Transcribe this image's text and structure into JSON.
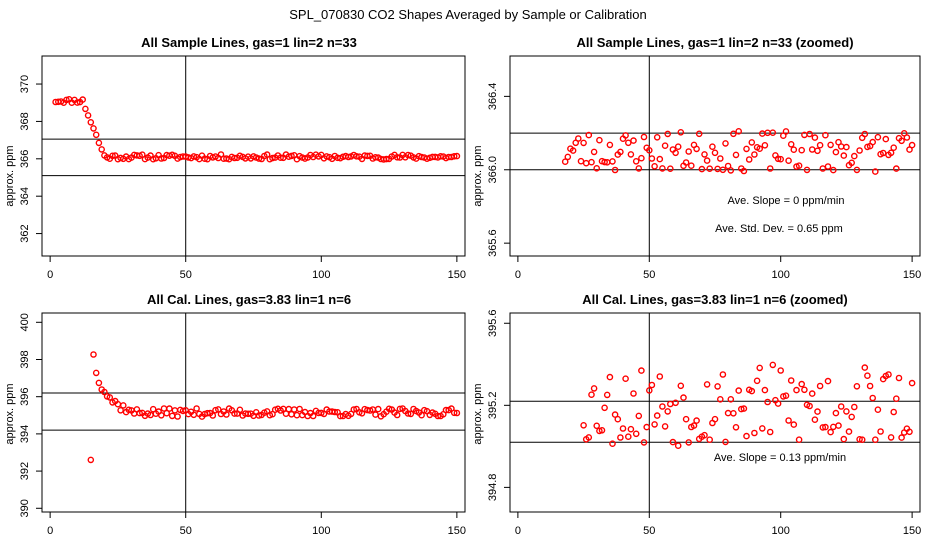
{
  "figure_title": "SPL_070830  CO2 Shapes Averaged by Sample or Calibration",
  "colors": {
    "points": "#ff0000",
    "axes": "#000000",
    "background": "#ffffff"
  },
  "chart_data": [
    {
      "type": "scatter",
      "title": "All Sample Lines, gas=1 lin=2 n=33",
      "ylabel": "approx. ppm",
      "xlim": [
        -3,
        153
      ],
      "ylim": [
        360.8,
        371.5
      ],
      "xticks": [
        "0",
        "50",
        "100",
        "150"
      ],
      "xtick_values": [
        0,
        50,
        100,
        150
      ],
      "yticks": [
        "362",
        "364",
        "366",
        "368",
        "370"
      ],
      "ytick_values": [
        362,
        364,
        366,
        368,
        370
      ],
      "hlines": [
        367.05,
        365.1
      ],
      "vline": 50,
      "series": [
        {
          "name": "sample",
          "model": "sample_full",
          "x_start": 2,
          "x_end": 150,
          "step": 1,
          "base": 366.1,
          "noise": 0.13,
          "seed": 11
        }
      ],
      "annotations": []
    },
    {
      "type": "scatter",
      "title": "All Sample Lines, gas=1 lin=2 n=33 (zoomed)",
      "ylabel": "approx. ppm",
      "xlim": [
        -3,
        153
      ],
      "ylim": [
        365.53,
        366.62
      ],
      "xticks": [
        "0",
        "50",
        "100",
        "150"
      ],
      "xtick_values": [
        0,
        50,
        100,
        150
      ],
      "yticks": [
        "365.6",
        "366.0",
        "366.4"
      ],
      "ytick_values": [
        365.6,
        366.0,
        366.4
      ],
      "hlines": [
        366.2,
        366.0
      ],
      "vline": 50,
      "series": [
        {
          "name": "sample",
          "model": "noise",
          "x_start": 18,
          "x_end": 150,
          "step": 1,
          "base": 366.1,
          "noise": 0.11,
          "seed": 23
        }
      ],
      "annotations": [
        "Ave. Slope =  0  ppm/min",
        "Ave. Std. Dev. =  0.65  ppm"
      ]
    },
    {
      "type": "scatter",
      "title": "All Cal. Lines, gas=3.83 lin=1 n=6",
      "ylabel": "approx. ppm",
      "xlim": [
        -3,
        153
      ],
      "ylim": [
        389.8,
        400.5
      ],
      "xticks": [
        "0",
        "50",
        "100",
        "150"
      ],
      "xtick_values": [
        0,
        50,
        100,
        150
      ],
      "yticks": [
        "390",
        "392",
        "394",
        "396",
        "398",
        "400"
      ],
      "ytick_values": [
        390,
        392,
        394,
        396,
        398,
        400
      ],
      "hlines": [
        396.2,
        394.2
      ],
      "vline": 50,
      "series": [
        {
          "name": "calibration",
          "model": "cal_full",
          "x_start": 15,
          "x_end": 150,
          "step": 1,
          "base": 395.15,
          "noise": 0.22,
          "seed": 37
        }
      ],
      "annotations": []
    },
    {
      "type": "scatter",
      "title": "All Cal. Lines, gas=3.83 lin=1 n=6 (zoomed)",
      "ylabel": "approx. ppm",
      "xlim": [
        -3,
        153
      ],
      "ylim": [
        394.68,
        395.65
      ],
      "xticks": [
        "0",
        "50",
        "100",
        "150"
      ],
      "xtick_values": [
        0,
        50,
        100,
        150
      ],
      "yticks": [
        "394.8",
        "395.2",
        "395.6"
      ],
      "ytick_values": [
        394.8,
        395.2,
        395.6
      ],
      "hlines": [
        395.22,
        395.02
      ],
      "vline": 50,
      "series": [
        {
          "name": "calibration",
          "model": "noise",
          "x_start": 25,
          "x_end": 150,
          "step": 1,
          "base": 395.2,
          "noise": 0.2,
          "seed": 53
        }
      ],
      "annotations": [
        "Ave. Slope =  0.13  ppm/min"
      ]
    }
  ]
}
